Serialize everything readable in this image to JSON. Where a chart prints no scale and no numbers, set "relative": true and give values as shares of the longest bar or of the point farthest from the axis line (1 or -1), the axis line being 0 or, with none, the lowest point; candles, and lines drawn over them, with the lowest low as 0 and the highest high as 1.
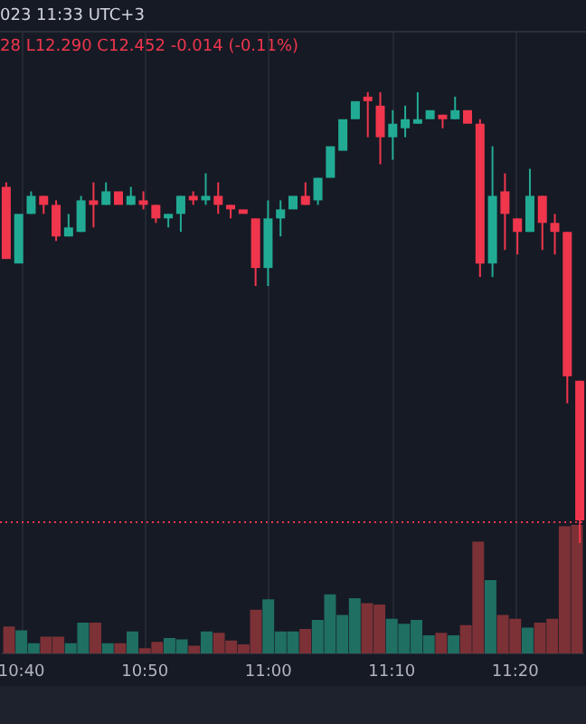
{
  "chart_data": [
    {
      "type": "candlestick",
      "relative": true,
      "legend": false,
      "tick_labels": false,
      "annotations": [
        "023 11:33 UTC+3",
        "28 L12.290 C12.452 -0.014 (-0.11%)"
      ],
      "categories": [
        null,
        null,
        null,
        null,
        null,
        null,
        null,
        null,
        null,
        null,
        null,
        null,
        null,
        null,
        null,
        null,
        null,
        null,
        null,
        null,
        null,
        null,
        null,
        null,
        null,
        null,
        null,
        null,
        null,
        null,
        null,
        null,
        null,
        null,
        null,
        null,
        null,
        null,
        null,
        null,
        null,
        null,
        null,
        null,
        null,
        null,
        null
      ],
      "ohlc": [
        [
          0.79,
          0.8,
          0.63,
          0.63
        ],
        [
          0.62,
          0.73,
          0.62,
          0.73
        ],
        [
          0.73,
          0.78,
          0.73,
          0.77
        ],
        [
          0.77,
          0.77,
          0.73,
          0.75
        ],
        [
          0.75,
          0.76,
          0.67,
          0.68
        ],
        [
          0.68,
          0.73,
          0.68,
          0.7
        ],
        [
          0.69,
          0.77,
          0.69,
          0.76
        ],
        [
          0.76,
          0.8,
          0.7,
          0.75
        ],
        [
          0.75,
          0.8,
          0.75,
          0.78
        ],
        [
          0.78,
          0.78,
          0.75,
          0.75
        ],
        [
          0.75,
          0.79,
          0.75,
          0.77
        ],
        [
          0.76,
          0.78,
          0.74,
          0.75
        ],
        [
          0.75,
          0.75,
          0.71,
          0.72
        ],
        [
          0.72,
          0.73,
          0.7,
          0.73
        ],
        [
          0.73,
          0.77,
          0.69,
          0.77
        ],
        [
          0.77,
          0.78,
          0.75,
          0.76
        ],
        [
          0.76,
          0.82,
          0.75,
          0.77
        ],
        [
          0.77,
          0.8,
          0.73,
          0.75
        ],
        [
          0.75,
          0.75,
          0.72,
          0.74
        ],
        [
          0.74,
          0.74,
          0.73,
          0.73
        ],
        [
          0.72,
          0.72,
          0.57,
          0.61
        ],
        [
          0.61,
          0.76,
          0.57,
          0.72
        ],
        [
          0.72,
          0.76,
          0.68,
          0.74
        ],
        [
          0.74,
          0.77,
          0.74,
          0.77
        ],
        [
          0.77,
          0.8,
          0.75,
          0.75
        ],
        [
          0.76,
          0.81,
          0.75,
          0.81
        ],
        [
          0.81,
          0.88,
          0.81,
          0.88
        ],
        [
          0.87,
          0.94,
          0.87,
          0.94
        ],
        [
          0.94,
          0.98,
          0.94,
          0.98
        ],
        [
          0.99,
          1,
          0.9,
          0.98
        ],
        [
          0.97,
          1,
          0.84,
          0.9
        ],
        [
          0.9,
          0.96,
          0.85,
          0.93
        ],
        [
          0.92,
          0.97,
          0.9,
          0.94
        ],
        [
          0.93,
          1,
          0.93,
          0.94
        ],
        [
          0.94,
          0.96,
          0.94,
          0.96
        ],
        [
          0.95,
          0.95,
          0.92,
          0.94
        ],
        [
          0.94,
          0.99,
          0.94,
          0.96
        ],
        [
          0.96,
          0.96,
          0.93,
          0.93
        ],
        [
          0.93,
          0.94,
          0.59,
          0.62
        ],
        [
          0.62,
          0.88,
          0.59,
          0.77
        ],
        [
          0.78,
          0.82,
          0.65,
          0.73
        ],
        [
          0.72,
          0.72,
          0.64,
          0.69
        ],
        [
          0.69,
          0.83,
          0.69,
          0.77
        ],
        [
          0.77,
          0.77,
          0.65,
          0.71
        ],
        [
          0.71,
          0.73,
          0.64,
          0.69
        ],
        [
          0.69,
          0.69,
          0.31,
          0.37
        ],
        [
          0.36,
          0.36,
          0,
          0.05
        ]
      ],
      "colors": [
        "#f0364c",
        "#22ab94",
        "#22ab94",
        "#f0364c",
        "#f0364c",
        "#22ab94",
        "#22ab94",
        "#f0364c",
        "#22ab94",
        "#f0364c",
        "#22ab94",
        "#f0364c",
        "#f0364c",
        "#22ab94",
        "#22ab94",
        "#f0364c",
        "#22ab94",
        "#f0364c",
        "#f0364c",
        "#f0364c",
        "#f0364c",
        "#22ab94",
        "#22ab94",
        "#22ab94",
        "#f0364c",
        "#22ab94",
        "#22ab94",
        "#22ab94",
        "#22ab94",
        "#f0364c",
        "#f0364c",
        "#22ab94",
        "#22ab94",
        "#22ab94",
        "#22ab94",
        "#f0364c",
        "#22ab94",
        "#f0364c",
        "#f0364c",
        "#22ab94",
        "#f0364c",
        "#f0364c",
        "#22ab94",
        "#f0364c",
        "#f0364c",
        "#f0364c",
        "#f0364c"
      ],
      "ref_lines": [
        {
          "axis": "y",
          "value": 0.05,
          "color": "#f0364c",
          "line_style": "dotted"
        }
      ]
    },
    {
      "type": "bar",
      "relative": true,
      "legend": false,
      "grid": "x",
      "tick_labels": "x",
      "categories": [
        null,
        "10:40",
        null,
        null,
        null,
        null,
        null,
        null,
        null,
        null,
        null,
        "10:50",
        null,
        null,
        null,
        null,
        null,
        null,
        null,
        null,
        null,
        "11:00",
        null,
        null,
        null,
        null,
        null,
        null,
        null,
        null,
        null,
        "11:10",
        null,
        null,
        null,
        null,
        null,
        null,
        null,
        null,
        null,
        "11:20",
        null,
        null,
        null,
        null,
        null
      ],
      "values": [
        0.21,
        0.18,
        0.08,
        0.13,
        0.13,
        0.08,
        0.24,
        0.24,
        0.08,
        0.08,
        0.17,
        0.04,
        0.09,
        0.12,
        0.11,
        0.06,
        0.17,
        0.16,
        0.1,
        0.07,
        0.34,
        0.42,
        0.17,
        0.17,
        0.19,
        0.26,
        0.46,
        0.3,
        0.43,
        0.39,
        0.38,
        0.27,
        0.23,
        0.26,
        0.14,
        0.16,
        0.14,
        0.22,
        0.87,
        0.57,
        0.3,
        0.27,
        0.2,
        0.24,
        0.27,
        0.99,
        1
      ],
      "colors": [
        "#7c3136",
        "#1f6f63",
        "#1f6f63",
        "#7c3136",
        "#7c3136",
        "#1f6f63",
        "#1f6f63",
        "#7c3136",
        "#1f6f63",
        "#7c3136",
        "#1f6f63",
        "#7c3136",
        "#7c3136",
        "#1f6f63",
        "#1f6f63",
        "#7c3136",
        "#1f6f63",
        "#7c3136",
        "#7c3136",
        "#7c3136",
        "#7c3136",
        "#1f6f63",
        "#1f6f63",
        "#1f6f63",
        "#7c3136",
        "#1f6f63",
        "#1f6f63",
        "#1f6f63",
        "#1f6f63",
        "#7c3136",
        "#7c3136",
        "#1f6f63",
        "#1f6f63",
        "#1f6f63",
        "#1f6f63",
        "#7c3136",
        "#1f6f63",
        "#7c3136",
        "#7c3136",
        "#1f6f63",
        "#7c3136",
        "#7c3136",
        "#1f6f63",
        "#7c3136",
        "#7c3136",
        "#7c3136",
        "#7c3136"
      ]
    }
  ]
}
